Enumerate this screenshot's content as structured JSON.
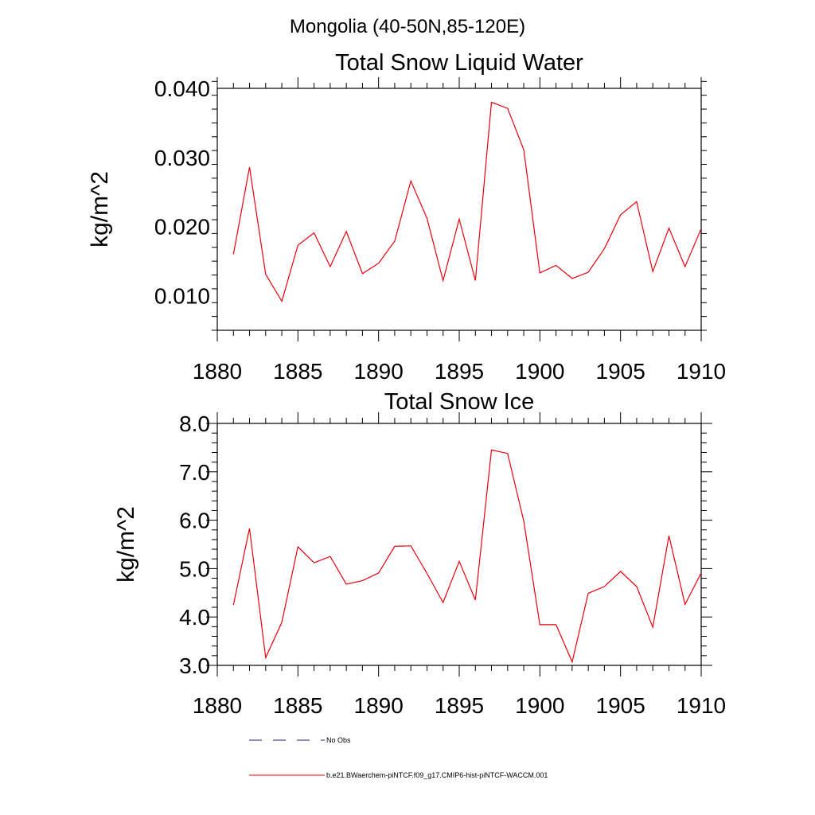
{
  "figure": {
    "title": "Mongolia (40-50N,85-120E)",
    "legend": [
      {
        "label": "No Obs",
        "color": "#1a1a6e",
        "style": "dashed"
      },
      {
        "label": "b.e21.BWaerchem-piNTCF.f09_g17.CMIP6-hist-piNTCF-WACCM.001",
        "color": "#e8000b",
        "style": "solid"
      }
    ]
  },
  "chart_data": [
    {
      "type": "line",
      "title": "Total Snow Liquid Water",
      "xlabel": "",
      "ylabel": "kg/m^2",
      "xlim": [
        1880,
        1910
      ],
      "ylim": [
        0.005,
        0.04
      ],
      "xticks": [
        1880,
        1885,
        1890,
        1895,
        1900,
        1905,
        1910
      ],
      "yticks": [
        0.01,
        0.02,
        0.03,
        0.04
      ],
      "ytick_labels": [
        "0.010",
        "0.020",
        "0.030",
        "0.040"
      ],
      "xtick_labels": [
        "1880",
        "1885",
        "1890",
        "1895",
        "1900",
        "1905",
        "1910"
      ],
      "grid": false,
      "series": [
        {
          "color": "#e8000b",
          "x": [
            1881,
            1882,
            1883,
            1884,
            1885,
            1886,
            1887,
            1888,
            1889,
            1890,
            1891,
            1892,
            1893,
            1894,
            1895,
            1896,
            1897,
            1898,
            1899,
            1900,
            1901,
            1902,
            1903,
            1904,
            1905,
            1906,
            1907,
            1908,
            1909,
            1910
          ],
          "y": [
            0.016,
            0.0286,
            0.0131,
            0.0092,
            0.0173,
            0.0191,
            0.0142,
            0.0193,
            0.0132,
            0.0147,
            0.0179,
            0.0266,
            0.0212,
            0.0122,
            0.0211,
            0.0122,
            0.038,
            0.0371,
            0.0311,
            0.0133,
            0.0144,
            0.0125,
            0.0134,
            0.0168,
            0.0217,
            0.0236,
            0.0135,
            0.0198,
            0.0142,
            0.0197
          ]
        }
      ]
    },
    {
      "type": "line",
      "title": "Total Snow Ice",
      "xlabel": "",
      "ylabel": "kg/m^2",
      "xlim": [
        1880,
        1910
      ],
      "ylim": [
        3.0,
        8.0
      ],
      "xticks": [
        1880,
        1885,
        1890,
        1895,
        1900,
        1905,
        1910
      ],
      "yticks": [
        3.0,
        4.0,
        5.0,
        6.0,
        7.0,
        8.0
      ],
      "ytick_labels": [
        "3.0",
        "4.0",
        "5.0",
        "6.0",
        "7.0",
        "8.0"
      ],
      "xtick_labels": [
        "1880",
        "1885",
        "1890",
        "1895",
        "1900",
        "1905",
        "1910"
      ],
      "grid": false,
      "series": [
        {
          "color": "#e8000b",
          "x": [
            1881,
            1882,
            1883,
            1884,
            1885,
            1886,
            1887,
            1888,
            1889,
            1890,
            1891,
            1892,
            1893,
            1894,
            1895,
            1896,
            1897,
            1898,
            1899,
            1900,
            1901,
            1902,
            1903,
            1904,
            1905,
            1906,
            1907,
            1908,
            1909,
            1910
          ],
          "y": [
            4.25,
            5.83,
            3.16,
            3.89,
            5.45,
            5.12,
            5.25,
            4.68,
            4.75,
            4.91,
            5.46,
            5.47,
            4.9,
            4.3,
            5.15,
            4.35,
            7.45,
            7.38,
            5.98,
            3.84,
            3.84,
            3.07,
            4.49,
            4.63,
            4.94,
            4.63,
            3.79,
            5.68,
            4.26,
            4.91
          ]
        }
      ]
    }
  ]
}
